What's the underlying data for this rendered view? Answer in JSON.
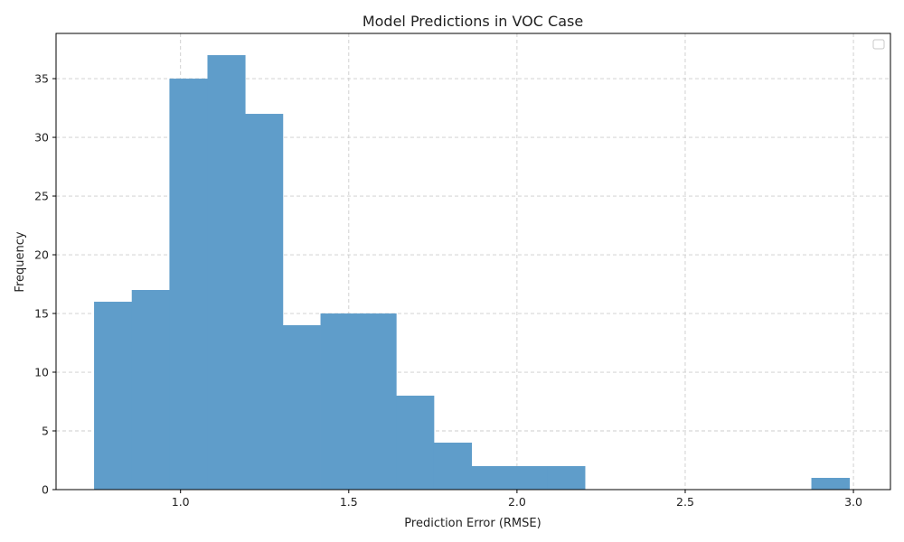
{
  "chart_data": {
    "type": "bar",
    "subtype": "histogram",
    "title": "Model Predictions in VOC Case",
    "xlabel": "Prediction Error (RMSE)",
    "ylabel": "Frequency",
    "xlim": [
      0.63,
      3.11
    ],
    "ylim": [
      0,
      38.85
    ],
    "xticks": [
      1.0,
      1.5,
      2.0,
      2.5,
      3.0
    ],
    "xtick_labels": [
      "1.0",
      "1.5",
      "2.0",
      "2.5",
      "3.0"
    ],
    "yticks": [
      0,
      5,
      10,
      15,
      20,
      25,
      30,
      35
    ],
    "ytick_labels": [
      "0",
      "5",
      "10",
      "15",
      "20",
      "25",
      "30",
      "35"
    ],
    "grid": true,
    "legend": {
      "placement": "top-right",
      "entries": []
    },
    "bar_color": "#5f9dca",
    "bins": [
      {
        "x0": 0.743,
        "x1": 0.855,
        "value": 16
      },
      {
        "x0": 0.855,
        "x1": 0.967,
        "value": 17
      },
      {
        "x0": 0.967,
        "x1": 1.08,
        "value": 35
      },
      {
        "x0": 1.08,
        "x1": 1.192,
        "value": 37
      },
      {
        "x0": 1.192,
        "x1": 1.304,
        "value": 32
      },
      {
        "x0": 1.304,
        "x1": 1.416,
        "value": 14
      },
      {
        "x0": 1.416,
        "x1": 1.529,
        "value": 15
      },
      {
        "x0": 1.529,
        "x1": 1.641,
        "value": 15
      },
      {
        "x0": 1.641,
        "x1": 1.753,
        "value": 8
      },
      {
        "x0": 1.753,
        "x1": 1.865,
        "value": 4
      },
      {
        "x0": 1.865,
        "x1": 1.978,
        "value": 2
      },
      {
        "x0": 1.978,
        "x1": 2.09,
        "value": 2
      },
      {
        "x0": 2.09,
        "x1": 2.202,
        "value": 2
      },
      {
        "x0": 2.202,
        "x1": 2.314,
        "value": 0
      },
      {
        "x0": 2.314,
        "x1": 2.427,
        "value": 0
      },
      {
        "x0": 2.427,
        "x1": 2.539,
        "value": 0
      },
      {
        "x0": 2.539,
        "x1": 2.651,
        "value": 0
      },
      {
        "x0": 2.651,
        "x1": 2.763,
        "value": 0
      },
      {
        "x0": 2.763,
        "x1": 2.875,
        "value": 0
      },
      {
        "x0": 2.875,
        "x1": 2.988,
        "value": 1
      }
    ]
  }
}
